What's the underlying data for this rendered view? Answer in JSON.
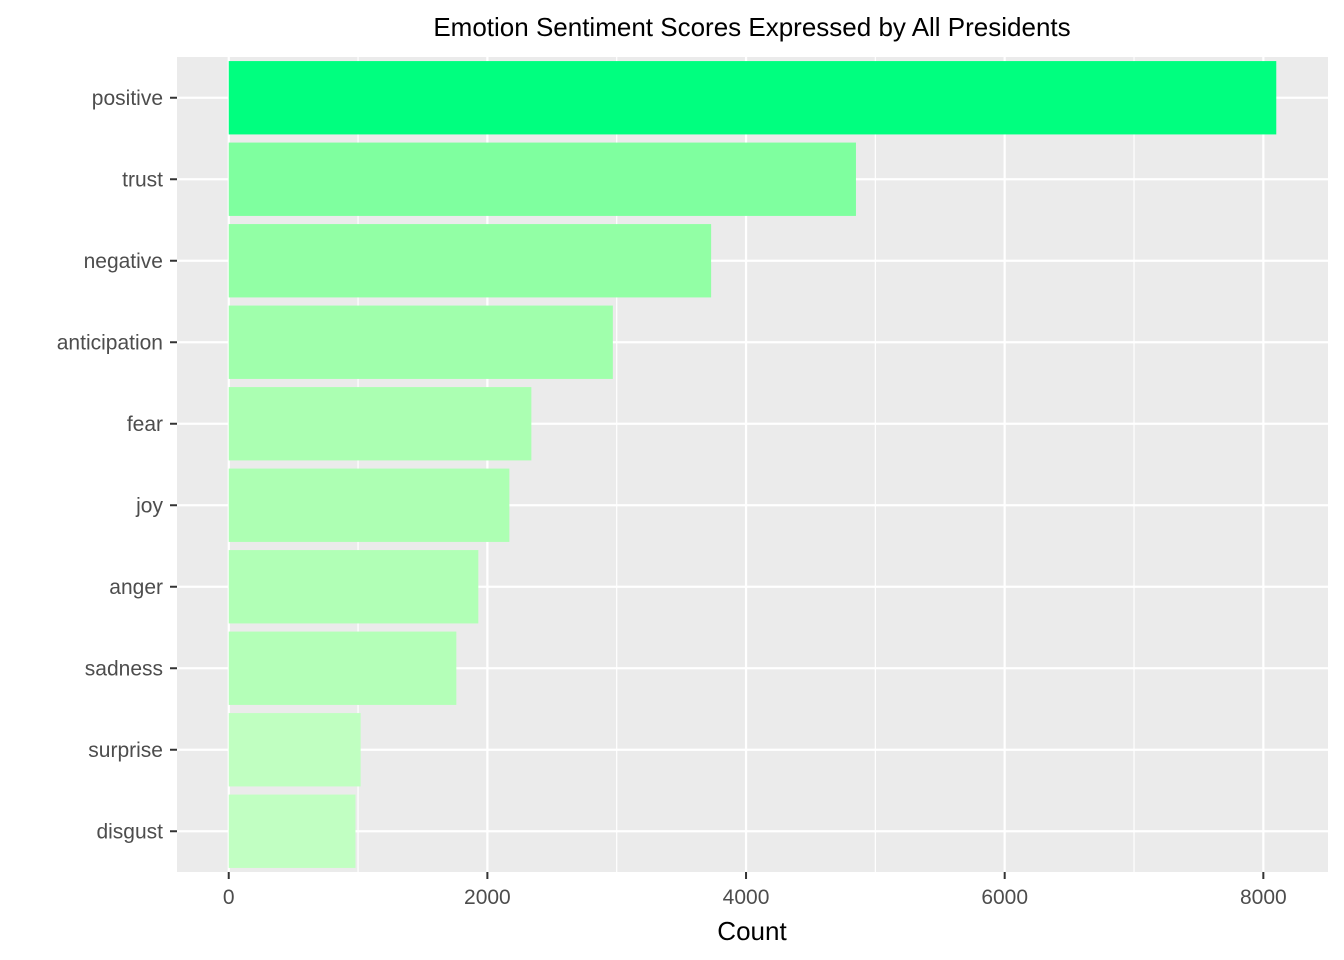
{
  "chart_data": {
    "type": "bar",
    "orientation": "horizontal",
    "title": "Emotion Sentiment Scores Expressed by All Presidents",
    "xlabel": "Count",
    "ylabel": "",
    "xlim": [
      -400,
      8500
    ],
    "x_ticks": [
      0,
      2000,
      4000,
      6000,
      8000
    ],
    "grid": true,
    "legend": "none",
    "categories": [
      "positive",
      "trust",
      "negative",
      "anticipation",
      "fear",
      "joy",
      "anger",
      "sadness",
      "surprise",
      "disgust"
    ],
    "values": [
      8100,
      4850,
      3730,
      2970,
      2340,
      2170,
      1930,
      1760,
      1020,
      980
    ],
    "colors": [
      "#00ff7f",
      "#7fff9f",
      "#92ffa5",
      "#a0ffac",
      "#abffb2",
      "#adffb3",
      "#b1ffb6",
      "#b4ffb8",
      "#c0ffc1",
      "#c1ffc2"
    ],
    "panel_color": "#ebebeb",
    "grid_color": "#ffffff"
  }
}
